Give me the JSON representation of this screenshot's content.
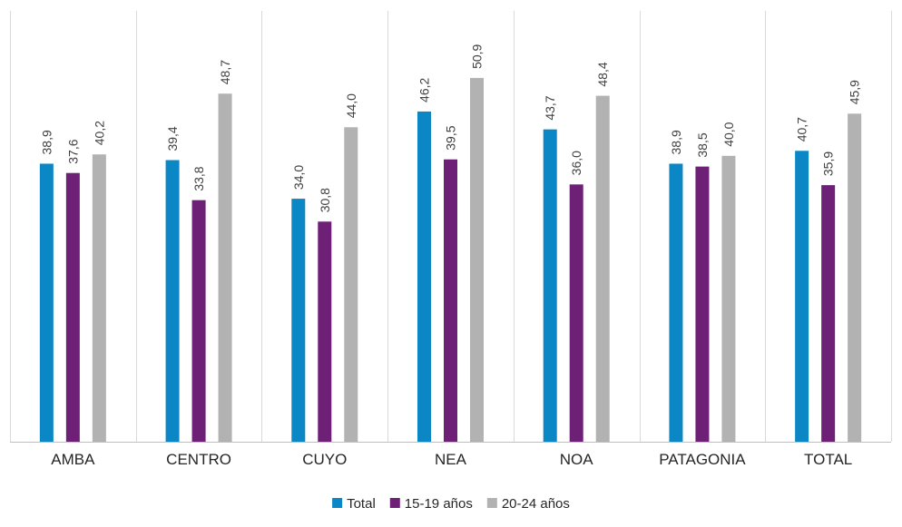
{
  "chart_data": {
    "type": "bar",
    "title": "",
    "xlabel": "",
    "ylabel": "",
    "ylim": [
      0,
      55
    ],
    "grid": false,
    "legend_position": "bottom",
    "categories": [
      "AMBA",
      "CENTRO",
      "CUYO",
      "NEA",
      "NOA",
      "PATAGONIA",
      "TOTAL"
    ],
    "series": [
      {
        "name": "Total",
        "color": "#0a87c4",
        "values": [
          38.9,
          39.4,
          34.0,
          46.2,
          43.7,
          38.9,
          40.7
        ],
        "labels": [
          "38,9",
          "39,4",
          "34,0",
          "46,2",
          "43,7",
          "38,9",
          "40,7"
        ]
      },
      {
        "name": "15-19 años",
        "color": "#6e2077",
        "values": [
          37.6,
          33.8,
          30.8,
          39.5,
          36.0,
          38.5,
          35.9
        ],
        "labels": [
          "37,6",
          "33,8",
          "30,8",
          "39,5",
          "36,0",
          "38,5",
          "35,9"
        ]
      },
      {
        "name": "20-24 años",
        "color": "#b2b2b2",
        "values": [
          40.2,
          48.7,
          44.0,
          50.9,
          48.4,
          40.0,
          45.9
        ],
        "labels": [
          "40,2",
          "48,7",
          "44,0",
          "50,9",
          "48,4",
          "40,0",
          "45,9"
        ]
      }
    ]
  }
}
